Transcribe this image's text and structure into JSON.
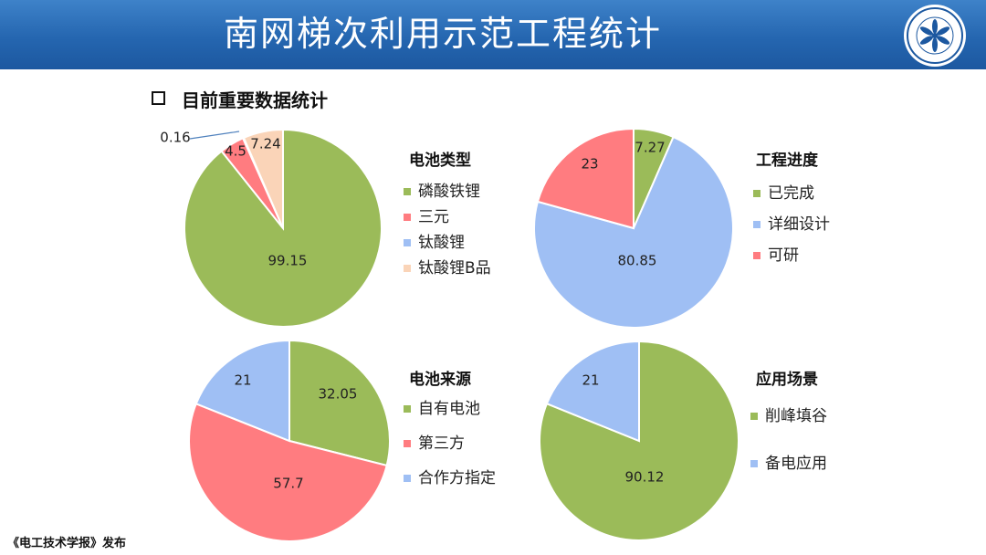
{
  "header": {
    "title": "南网梯次利用示范工程统计"
  },
  "section": {
    "title": "目前重要数据统计"
  },
  "footer": {
    "text": "《电工技术学报》发布"
  },
  "colors": {
    "green": "#9bbb59",
    "red": "#ff7c80",
    "blue": "#9fbff4",
    "peach": "#fad4b8"
  },
  "chart_data": [
    {
      "type": "pie",
      "title": "电池类型",
      "slices": [
        {
          "label": "磷酸铁锂",
          "value": 99.15,
          "color": "#9bbb59"
        },
        {
          "label": "三元",
          "value": 4.5,
          "color": "#ff7c80"
        },
        {
          "label": "钛酸锂",
          "value": 0.16,
          "color": "#9fbff4"
        },
        {
          "label": "钛酸锂B品",
          "value": 7.24,
          "color": "#fad4b8"
        }
      ],
      "legend_position": "right"
    },
    {
      "type": "pie",
      "title": "工程进度",
      "slices": [
        {
          "label": "已完成",
          "value": 7.27,
          "color": "#9bbb59"
        },
        {
          "label": "详细设计",
          "value": 80.85,
          "color": "#9fbff4"
        },
        {
          "label": "可研",
          "value": 23,
          "color": "#ff7c80"
        }
      ],
      "legend_position": "right"
    },
    {
      "type": "pie",
      "title": "电池来源",
      "slices": [
        {
          "label": "自有电池",
          "value": 32.05,
          "color": "#9bbb59"
        },
        {
          "label": "第三方",
          "value": 57.7,
          "color": "#ff7c80"
        },
        {
          "label": "合作方指定",
          "value": 21,
          "color": "#9fbff4"
        }
      ],
      "legend_position": "right"
    },
    {
      "type": "pie",
      "title": "应用场景",
      "slices": [
        {
          "label": "削峰填谷",
          "value": 90.12,
          "color": "#9bbb59"
        },
        {
          "label": "备电应用",
          "value": 21,
          "color": "#9fbff4"
        }
      ],
      "legend_position": "right"
    }
  ]
}
